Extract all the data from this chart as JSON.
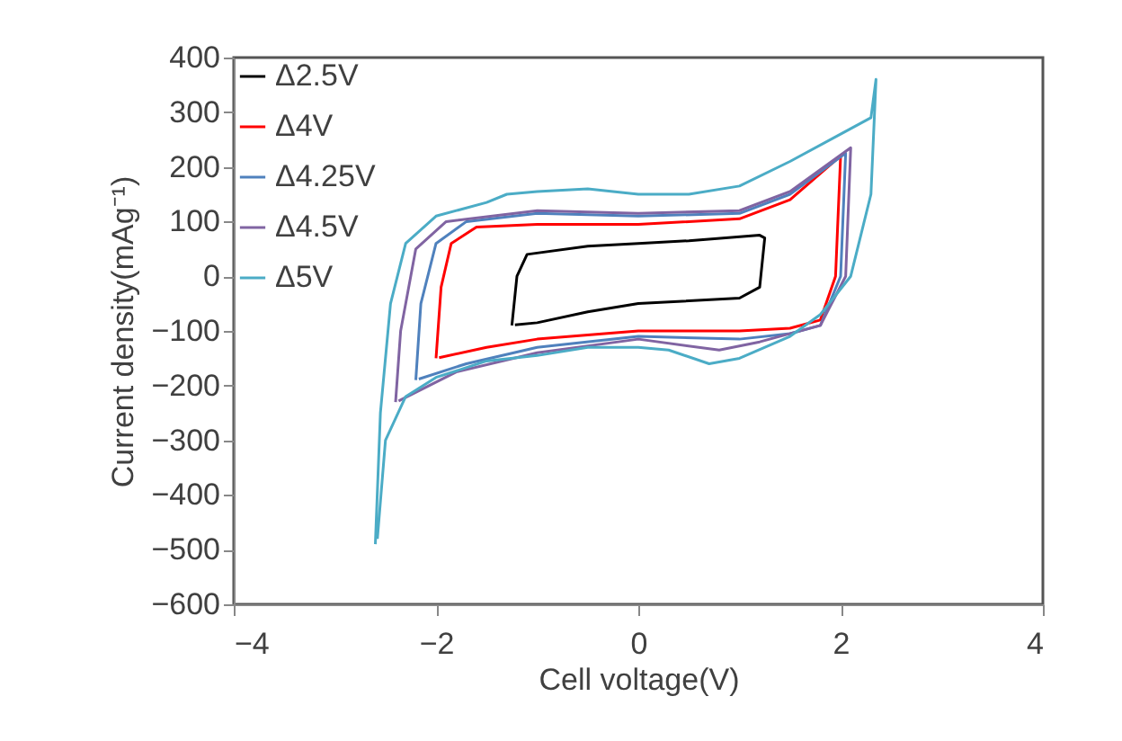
{
  "chart_data": {
    "type": "line",
    "xlabel": "Cell voltage(V)",
    "ylabel": "Current density(mAg⁻¹)",
    "xlim": [
      -4,
      4
    ],
    "xticks": [
      -4,
      -2,
      0,
      2,
      4
    ],
    "ylim": [
      -600,
      400
    ],
    "yticks": [
      -600,
      -500,
      -400,
      -300,
      -200,
      -100,
      0,
      100,
      200,
      300,
      400
    ],
    "grid": false,
    "legend": "top left",
    "marker": "none",
    "line_style": "solid",
    "series": [
      {
        "name": "Δ2.5V",
        "color": "#000000",
        "x": [
          -1.25,
          -1.2,
          -1.1,
          -0.5,
          0,
          0.5,
          1.2,
          1.25,
          1.2,
          1.0,
          0,
          -0.5,
          -1.0,
          -1.22
        ],
        "values": [
          -90,
          0,
          40,
          55,
          60,
          65,
          75,
          70,
          -20,
          -40,
          -50,
          -65,
          -85,
          -89
        ]
      },
      {
        "name": "Δ4V",
        "color": "#ff0000",
        "x": [
          -2,
          -1.95,
          -1.85,
          -1.6,
          -1,
          0,
          1,
          1.5,
          2,
          1.95,
          1.8,
          1.5,
          1,
          0,
          -1,
          -1.5,
          -1.97
        ],
        "values": [
          -150,
          -20,
          60,
          90,
          95,
          95,
          105,
          140,
          220,
          0,
          -80,
          -95,
          -100,
          -100,
          -115,
          -130,
          -149
        ]
      },
      {
        "name": "Δ4.25V",
        "color": "#4f81bd",
        "x": [
          -2.2,
          -2.15,
          -2.0,
          -1.7,
          -1,
          0,
          1,
          1.5,
          2.05,
          2.0,
          1.8,
          1.5,
          1,
          0,
          -1,
          -1.7,
          -2.17
        ],
        "values": [
          -190,
          -50,
          60,
          100,
          115,
          110,
          115,
          150,
          225,
          0,
          -90,
          -105,
          -115,
          -110,
          -130,
          -160,
          -188
        ]
      },
      {
        "name": "Δ4.5V",
        "color": "#8064a2",
        "x": [
          -2.4,
          -2.35,
          -2.2,
          -1.9,
          -1,
          0,
          1,
          1.5,
          2.1,
          2.05,
          1.8,
          1.2,
          0.8,
          0,
          -1,
          -1.8,
          -2.37
        ],
        "values": [
          -230,
          -100,
          50,
          100,
          120,
          115,
          120,
          155,
          235,
          0,
          -90,
          -120,
          -135,
          -115,
          -140,
          -175,
          -228
        ]
      },
      {
        "name": "Δ5V",
        "color": "#4bacc6",
        "x": [
          -2.6,
          -2.55,
          -2.45,
          -2.3,
          -2,
          -1.5,
          -1.3,
          -1,
          -0.5,
          0,
          0.5,
          1,
          1.5,
          2,
          2.3,
          2.35,
          2.3,
          2.1,
          1.8,
          1.5,
          1,
          0.7,
          0.3,
          0,
          -0.5,
          -1,
          -1.5,
          -2,
          -2.3,
          -2.5,
          -2.58
        ],
        "values": [
          -490,
          -250,
          -50,
          60,
          110,
          135,
          150,
          155,
          160,
          150,
          150,
          165,
          210,
          260,
          290,
          360,
          150,
          0,
          -70,
          -110,
          -150,
          -160,
          -135,
          -130,
          -130,
          -145,
          -155,
          -185,
          -220,
          -300,
          -480
        ]
      }
    ]
  }
}
